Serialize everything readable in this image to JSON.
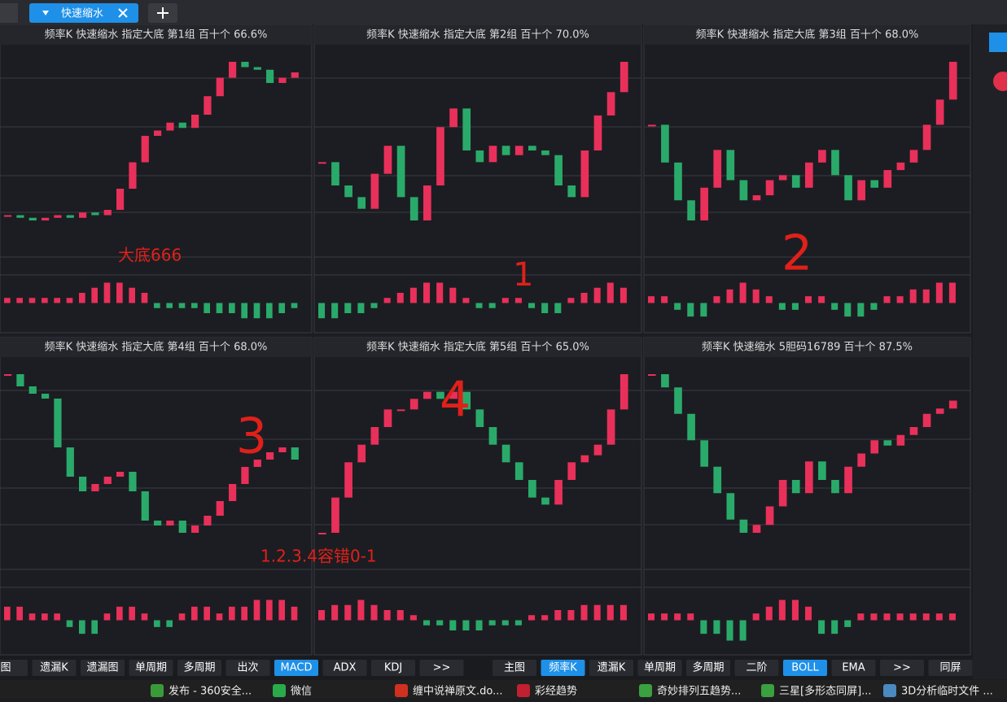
{
  "tab": {
    "label": "快速缩水"
  },
  "panels": [
    {
      "title": "频率K  快速缩水  指定大底 第1组  百十个  66.6%",
      "closes": [
        30,
        29,
        28,
        29,
        30,
        29,
        31,
        30,
        32,
        40,
        50,
        60,
        62,
        65,
        63,
        68,
        75,
        82,
        88,
        86,
        85,
        80,
        82,
        84
      ],
      "macd": [
        1,
        1,
        1,
        1,
        1,
        1,
        2,
        3,
        4,
        4,
        3,
        2,
        -1,
        -1,
        -1,
        -1,
        -2,
        -2,
        -2,
        -3,
        -3,
        -3,
        -2,
        -1
      ]
    },
    {
      "title": "频率K  快速缩水  指定大底 第2组  百十个  70.0%",
      "closes": [
        55,
        45,
        40,
        35,
        50,
        62,
        40,
        30,
        45,
        70,
        78,
        60,
        55,
        62,
        58,
        62,
        60,
        58,
        45,
        40,
        60,
        75,
        85,
        98
      ],
      "macd": [
        -3,
        -3,
        -2,
        -2,
        -1,
        1,
        2,
        3,
        4,
        4,
        3,
        1,
        -1,
        -1,
        1,
        1,
        -1,
        -2,
        -2,
        1,
        2,
        3,
        4,
        3
      ]
    },
    {
      "title": "频率K  快速缩水  指定大底 第3组  百十个  68.0%",
      "closes": [
        70,
        55,
        40,
        32,
        45,
        60,
        48,
        40,
        42,
        48,
        50,
        45,
        55,
        60,
        50,
        40,
        48,
        45,
        52,
        55,
        60,
        70,
        80,
        95
      ],
      "macd": [
        1,
        1,
        -1,
        -2,
        -2,
        1,
        2,
        3,
        2,
        1,
        -1,
        -1,
        1,
        1,
        -1,
        -2,
        -2,
        -1,
        1,
        1,
        2,
        2,
        3,
        3
      ]
    },
    {
      "title": "频率K  快速缩水  指定大底 第4组  百十个  68.0%",
      "closes": [
        90,
        85,
        82,
        80,
        60,
        48,
        42,
        45,
        48,
        50,
        42,
        30,
        28,
        30,
        25,
        28,
        32,
        38,
        45,
        52,
        55,
        58,
        60,
        55
      ],
      "macd": [
        2,
        2,
        1,
        1,
        1,
        -1,
        -2,
        -2,
        1,
        2,
        2,
        1,
        -1,
        -1,
        1,
        2,
        2,
        1,
        2,
        2,
        3,
        3,
        3,
        2
      ]
    },
    {
      "title": "频率K  快速缩水  指定大底 第5组  百十个  65.0%",
      "closes": [
        20,
        30,
        40,
        45,
        50,
        55,
        55,
        58,
        60,
        58,
        60,
        55,
        50,
        45,
        40,
        35,
        30,
        28,
        35,
        40,
        42,
        45,
        55,
        65
      ],
      "macd": [
        2,
        3,
        3,
        4,
        3,
        2,
        2,
        1,
        -1,
        -1,
        -2,
        -2,
        -2,
        -1,
        -1,
        -1,
        1,
        1,
        2,
        2,
        3,
        3,
        3,
        3
      ]
    },
    {
      "title": "频率K  快速缩水  5胆码16789  百十个  87.5%",
      "closes": [
        85,
        80,
        70,
        60,
        50,
        40,
        30,
        25,
        28,
        35,
        45,
        40,
        52,
        45,
        40,
        50,
        55,
        60,
        58,
        62,
        65,
        70,
        72,
        75
      ],
      "macd": [
        1,
        1,
        1,
        1,
        -2,
        -2,
        -3,
        -3,
        1,
        2,
        3,
        3,
        2,
        -2,
        -2,
        -1,
        1,
        1,
        1,
        1,
        1,
        1,
        1,
        1
      ]
    }
  ],
  "annotations": [
    "大底666",
    "1",
    "2",
    "3",
    "4",
    "1.2.3.4容错0-1"
  ],
  "toolbar_left": [
    {
      "label": "图"
    },
    {
      "label": "遗漏K"
    },
    {
      "label": "遗漏图"
    },
    {
      "label": "单周期"
    },
    {
      "label": "多周期"
    },
    {
      "label": "出次"
    },
    {
      "label": "MACD",
      "active": true
    },
    {
      "label": "ADX"
    },
    {
      "label": "KDJ"
    },
    {
      "label": ">>"
    }
  ],
  "toolbar_right": [
    {
      "label": "主图"
    },
    {
      "label": "频率K",
      "active": true
    },
    {
      "label": "遗漏K"
    },
    {
      "label": "单周期"
    },
    {
      "label": "多周期"
    },
    {
      "label": "二阶"
    },
    {
      "label": "BOLL",
      "active": true
    },
    {
      "label": "EMA"
    },
    {
      "label": ">>"
    },
    {
      "label": "同屏"
    }
  ],
  "taskbar": [
    "发布 - 360安全...",
    "微信",
    "缠中说禅原文.do...",
    "彩经趋势",
    "奇妙排列五趋势...",
    "三星[多形态同屏]...",
    "3D分析临时文件 ..."
  ]
}
